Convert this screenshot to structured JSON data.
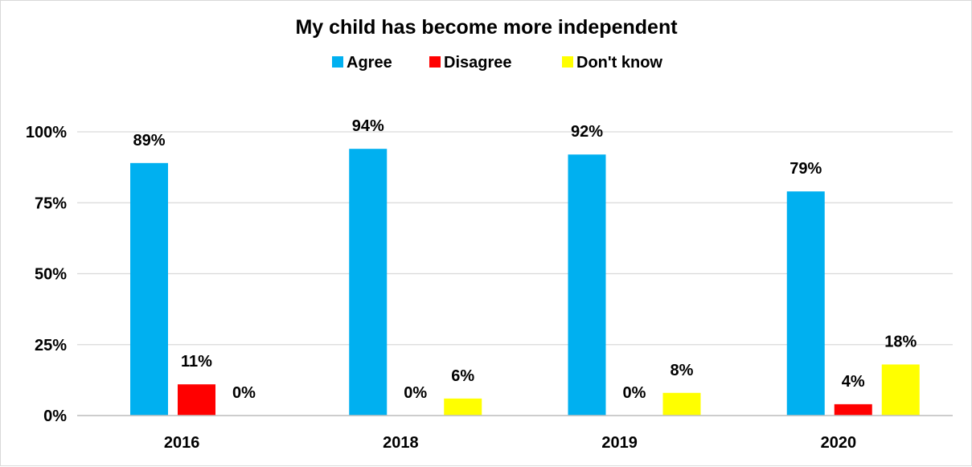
{
  "chart_data": {
    "type": "bar",
    "title": "My child has become more independent",
    "categories": [
      "2016",
      "2018",
      "2019",
      "2020"
    ],
    "series": [
      {
        "name": "Agree",
        "color": "#00B0F0",
        "values": [
          89,
          94,
          92,
          79
        ],
        "labels": [
          "89%",
          "94%",
          "92%",
          "79%"
        ]
      },
      {
        "name": "Disagree",
        "color": "#FF0000",
        "values": [
          11,
          0,
          0,
          4
        ],
        "labels": [
          "11%",
          "0%",
          "0%",
          "4%"
        ]
      },
      {
        "name": "Don't know",
        "color": "#FFFF00",
        "values": [
          0,
          6,
          8,
          18
        ],
        "labels": [
          "0%",
          "6%",
          "8%",
          "18%"
        ]
      }
    ],
    "ylim": [
      0,
      100
    ],
    "yticks": [
      0,
      25,
      50,
      75,
      100
    ],
    "ytick_labels": [
      "0%",
      "25%",
      "50%",
      "75%",
      "100%"
    ],
    "grid": true,
    "legend_position": "top",
    "xlabel": "",
    "ylabel": ""
  }
}
